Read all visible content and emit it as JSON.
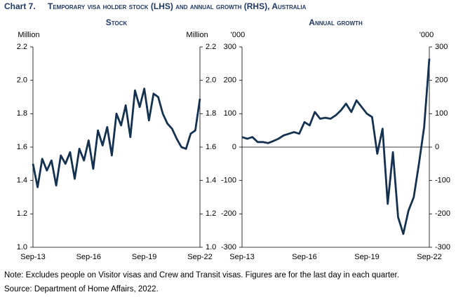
{
  "title": "Chart 7.",
  "subtitle": "Temporary visa holder stock (LHS) and annual growth (RHS), Australia",
  "note": "Note: Excludes people on Visitor visas and Crew and Transit visas. Figures are for the last day in each quarter.",
  "source": "Source: Department of Home Affairs, 2022.",
  "chart_data": [
    {
      "type": "line",
      "title": "Stock",
      "y_unit": "Million",
      "color": "#14324f",
      "categories": [
        "Sep-13",
        null,
        null,
        null,
        null,
        null,
        null,
        null,
        null,
        null,
        null,
        null,
        "Sep-16",
        null,
        null,
        null,
        null,
        null,
        null,
        null,
        null,
        null,
        null,
        null,
        "Sep-19",
        null,
        null,
        null,
        null,
        null,
        null,
        null,
        null,
        null,
        null,
        null,
        "Sep-22"
      ],
      "values": [
        1.5,
        1.36,
        1.53,
        1.46,
        1.52,
        1.37,
        1.55,
        1.5,
        1.57,
        1.41,
        1.59,
        1.52,
        1.64,
        1.47,
        1.7,
        1.61,
        1.72,
        1.55,
        1.8,
        1.73,
        1.85,
        1.66,
        1.94,
        1.84,
        1.95,
        1.76,
        1.92,
        1.9,
        1.8,
        1.74,
        1.71,
        1.65,
        1.6,
        1.59,
        1.68,
        1.7,
        1.89
      ],
      "ylim": [
        1.0,
        2.2
      ],
      "yticks": [
        {
          "value": 1.0,
          "label": "1.0"
        },
        1.2,
        1.4,
        1.6,
        1.8,
        {
          "value": 2.0,
          "label": "2.0"
        },
        2.2
      ]
    },
    {
      "type": "line",
      "title": "Annual growth",
      "y_unit": "'000",
      "color": "#14324f",
      "categories": [
        "Sep-13",
        null,
        null,
        null,
        null,
        null,
        null,
        null,
        null,
        null,
        null,
        null,
        "Sep-16",
        null,
        null,
        null,
        null,
        null,
        null,
        null,
        null,
        null,
        null,
        null,
        "Sep-19",
        null,
        null,
        null,
        null,
        null,
        null,
        null,
        null,
        null,
        null,
        null,
        "Sep-22"
      ],
      "values": [
        30,
        25,
        30,
        15,
        15,
        12,
        18,
        25,
        35,
        40,
        45,
        40,
        75,
        65,
        105,
        85,
        88,
        85,
        95,
        110,
        130,
        105,
        140,
        120,
        100,
        90,
        -20,
        55,
        -170,
        -15,
        -210,
        -260,
        -190,
        -150,
        -50,
        60,
        265
      ],
      "ylim": [
        -300,
        300
      ],
      "yticks": [
        -300,
        -200,
        -100,
        0,
        100,
        200,
        300
      ]
    }
  ]
}
